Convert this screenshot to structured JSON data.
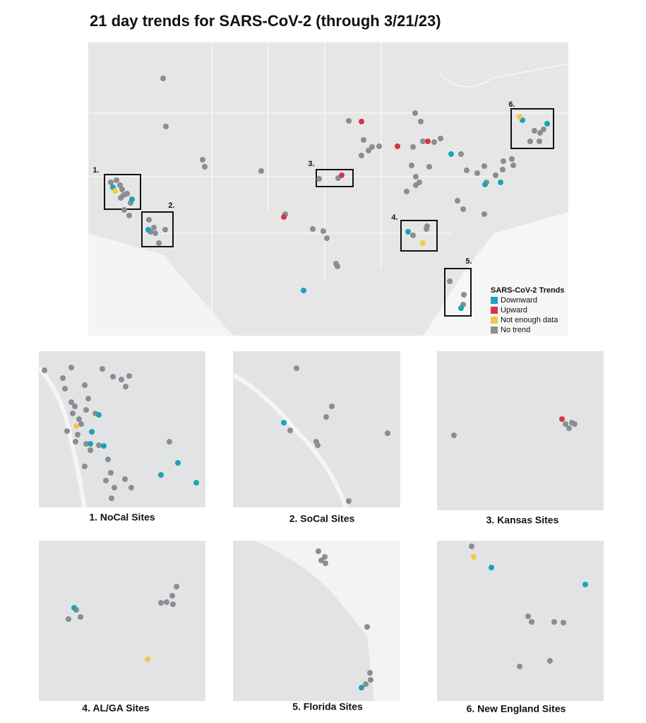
{
  "title": "21 day trends for SARS-CoV-2 (through 3/21/23)",
  "map": {
    "box_labels": [
      "1.",
      "2.",
      "3.",
      "4.",
      "5.",
      "6."
    ]
  },
  "legend": {
    "title": "SARS-CoV-2 Trends",
    "items": [
      {
        "label": "Downward",
        "color": "#1ba3b8"
      },
      {
        "label": "Upward",
        "color": "#d6344b"
      },
      {
        "label": "Not enough data",
        "color": "#f3c64f"
      },
      {
        "label": "No trend",
        "color": "#8a8d91"
      }
    ]
  },
  "insets": [
    {
      "label": "1. NoCal Sites"
    },
    {
      "label": "2. SoCal Sites"
    },
    {
      "label": "3. Kansas Sites"
    },
    {
      "label": "4. AL/GA Sites"
    },
    {
      "label": "5. Florida Sites"
    },
    {
      "label": "6. New England Sites"
    }
  ]
}
